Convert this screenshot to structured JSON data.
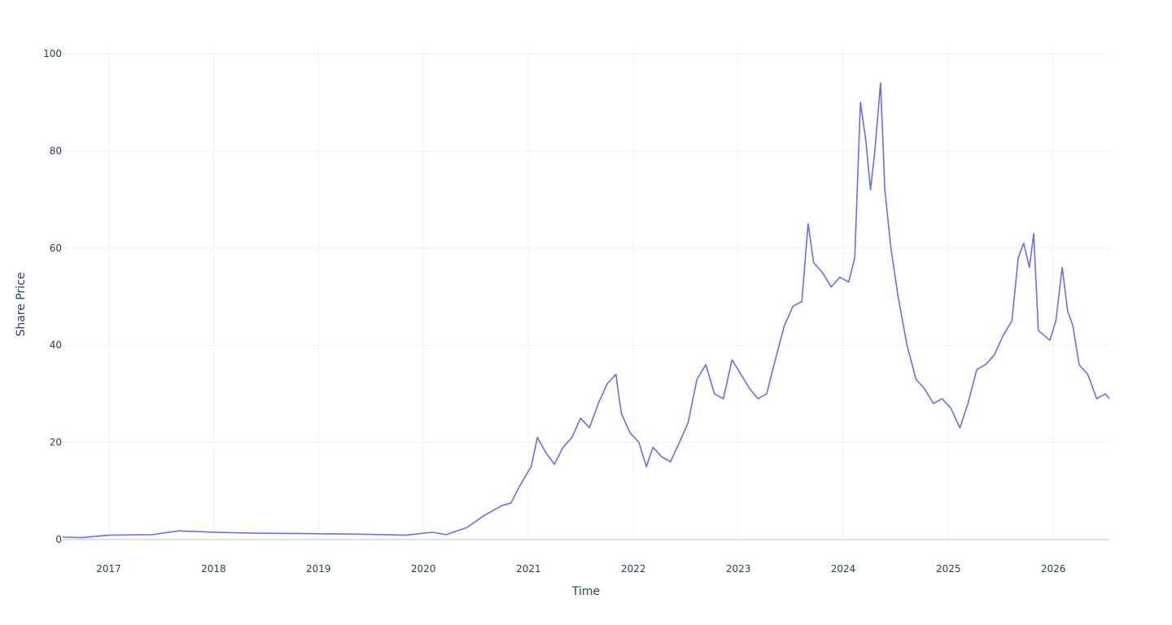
{
  "chart_data": {
    "type": "line",
    "xlabel": "Time",
    "ylabel": "Share Price",
    "ylim": [
      0,
      100
    ],
    "xlim": [
      "2016-07-25",
      "2026-07-15"
    ],
    "x_ticks": [
      "2017",
      "2018",
      "2019",
      "2020",
      "2021",
      "2022",
      "2023",
      "2024",
      "2025",
      "2026"
    ],
    "y_ticks": [
      0,
      20,
      40,
      60,
      80,
      100
    ],
    "grid": true,
    "line_color": "#636efa",
    "series": [
      {
        "x": [
          "2016-07-25",
          "2016-10-01",
          "2017-01-01",
          "2017-06-01",
          "2017-09-01",
          "2018-01-01",
          "2018-06-01",
          "2019-01-01",
          "2019-06-01",
          "2019-11-01",
          "2020-02-01",
          "2020-03-20",
          "2020-06-01",
          "2020-08-01",
          "2020-10-01",
          "2020-11-01",
          "2020-12-01",
          "2021-01-10",
          "2021-02-01",
          "2021-03-01",
          "2021-04-01",
          "2021-05-01",
          "2021-06-01",
          "2021-07-01",
          "2021-08-01",
          "2021-09-01",
          "2021-10-01",
          "2021-11-01",
          "2021-11-20",
          "2021-12-20",
          "2022-01-20",
          "2022-02-15",
          "2022-03-10",
          "2022-04-10",
          "2022-05-10",
          "2022-06-10",
          "2022-07-10",
          "2022-08-10",
          "2022-09-10",
          "2022-10-10",
          "2022-11-10",
          "2022-12-10",
          "2023-01-10",
          "2023-02-10",
          "2023-03-10",
          "2023-04-10",
          "2023-05-01",
          "2023-06-10",
          "2023-07-10",
          "2023-08-10",
          "2023-09-01",
          "2023-09-20",
          "2023-10-20",
          "2023-11-20",
          "2023-12-20",
          "2024-01-20",
          "2024-02-10",
          "2024-03-01",
          "2024-03-20",
          "2024-04-05",
          "2024-04-20",
          "2024-05-10",
          "2024-05-25",
          "2024-06-15",
          "2024-07-10",
          "2024-08-10",
          "2024-09-10",
          "2024-10-10",
          "2024-11-10",
          "2024-12-10",
          "2025-01-10",
          "2025-02-10",
          "2025-03-10",
          "2025-04-10",
          "2025-05-10",
          "2025-06-10",
          "2025-07-10",
          "2025-08-10",
          "2025-09-01",
          "2025-09-20",
          "2025-10-10",
          "2025-10-25",
          "2025-11-10",
          "2025-12-01",
          "2025-12-20",
          "2026-01-10",
          "2026-02-01",
          "2026-02-20",
          "2026-03-10",
          "2026-04-01",
          "2026-05-01",
          "2026-06-01",
          "2026-07-01",
          "2026-07-15"
        ],
        "y": [
          0.5,
          0.4,
          0.9,
          1.0,
          1.8,
          1.5,
          1.3,
          1.2,
          1.1,
          0.9,
          1.5,
          1.0,
          2.5,
          5.0,
          7.0,
          7.5,
          11.0,
          15.0,
          21.0,
          18.0,
          15.5,
          19.0,
          21.0,
          25.0,
          23.0,
          28.0,
          32.0,
          34.0,
          26.0,
          22.0,
          20.0,
          15.0,
          19.0,
          17.0,
          16.0,
          20.0,
          24.0,
          33.0,
          36.0,
          30.0,
          29.0,
          37.0,
          34.0,
          31.0,
          29.0,
          30.0,
          35.0,
          44.0,
          48.0,
          49.0,
          65.0,
          57.0,
          55.0,
          52.0,
          54.0,
          53.0,
          58.0,
          90.0,
          82.0,
          72.0,
          80.0,
          94.0,
          72.0,
          60.0,
          50.0,
          40.0,
          33.0,
          31.0,
          28.0,
          29.0,
          27.0,
          23.0,
          28.0,
          35.0,
          36.0,
          38.0,
          42.0,
          45.0,
          58.0,
          61.0,
          56.0,
          63.0,
          43.0,
          42.0,
          41.0,
          45.0,
          56.0,
          47.0,
          44.0,
          36.0,
          34.0,
          29.0,
          30.0,
          29.0
        ]
      }
    ]
  }
}
